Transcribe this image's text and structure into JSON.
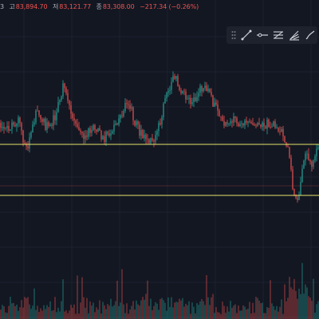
{
  "ohlc": {
    "partial": "3",
    "high_label": "고",
    "high": "83,894.70",
    "low_label": "저",
    "low": "83,121.77",
    "close_label": "종",
    "close": "83,308.00",
    "change": "−217.34 (−0.26%)"
  },
  "toolbar": {
    "items": [
      "drag-handle-icon",
      "trend-line-icon",
      "horizontal-ray-icon",
      "fib-retracement-icon",
      "pitchfork-icon",
      "brush-icon"
    ]
  },
  "colors": {
    "background": "#131722",
    "up": "#26a69a",
    "down": "#ef5350",
    "grid": "#1e2230",
    "level_line": "#e5e56a",
    "text_muted": "#b2b5be"
  },
  "chart_data": {
    "type": "candlestick",
    "price_levels": [
      {
        "color": "#e5e56a"
      },
      {
        "color": "#e5e56a"
      },
      {
        "color": "#ef5350"
      }
    ],
    "volume_visible": true,
    "grid": true
  }
}
